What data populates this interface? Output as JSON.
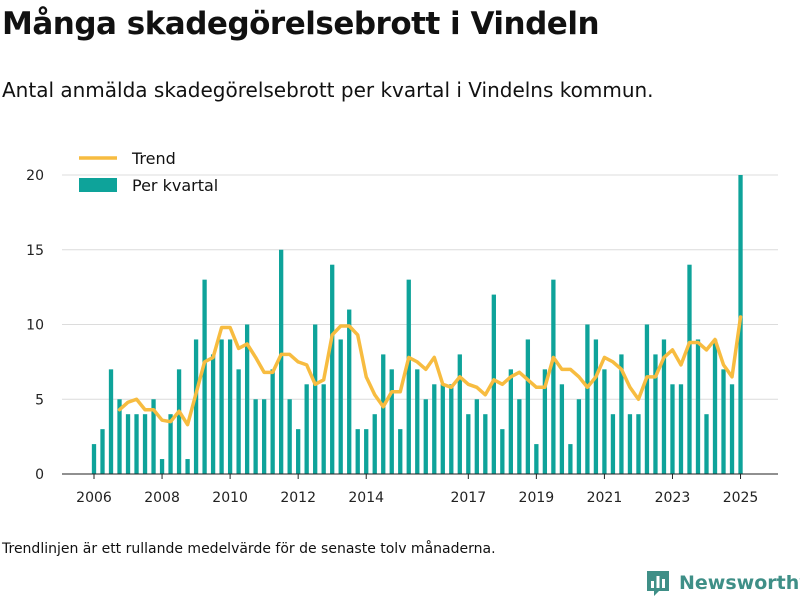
{
  "header": {
    "title": "Många skadegörelsebrott i Vindeln",
    "subtitle": "Antal anmälda skadegörelsebrott per kvartal i Vindelns kommun."
  },
  "footer": {
    "note": "Trendlinjen är ett rullande medelvärde för de senaste tolv månaderna.",
    "brand": "Newsworthy",
    "brand_icon": "bar-chart-logo-icon",
    "brand_color": "#3f8f87"
  },
  "chart_data": {
    "type": "bar",
    "title": "Många skadegörelsebrott i Vindeln",
    "subtitle": "Antal anmälda skadegörelsebrott per kvartal i Vindelns kommun.",
    "xlabel": "",
    "ylabel": "",
    "ylim": [
      0,
      20
    ],
    "yticks": [
      0,
      5,
      10,
      15,
      20
    ],
    "x_ticks": [
      {
        "label": "2006",
        "year": 2006
      },
      {
        "label": "2008",
        "year": 2008
      },
      {
        "label": "2010",
        "year": 2010
      },
      {
        "label": "2012",
        "year": 2012
      },
      {
        "label": "2014",
        "year": 2014
      },
      {
        "label": "2017",
        "year": 2017
      },
      {
        "label": "2019",
        "year": 2019
      },
      {
        "label": "2021",
        "year": 2021
      },
      {
        "label": "2023",
        "year": 2023
      },
      {
        "label": "2025",
        "year": 2025
      }
    ],
    "legend_position": "top-left",
    "grid": "horizontal",
    "categories": [
      "2006Q1",
      "2006Q2",
      "2006Q3",
      "2006Q4",
      "2007Q1",
      "2007Q2",
      "2007Q3",
      "2007Q4",
      "2008Q1",
      "2008Q2",
      "2008Q3",
      "2008Q4",
      "2009Q1",
      "2009Q2",
      "2009Q3",
      "2009Q4",
      "2010Q1",
      "2010Q2",
      "2010Q3",
      "2010Q4",
      "2011Q1",
      "2011Q2",
      "2011Q3",
      "2011Q4",
      "2012Q1",
      "2012Q2",
      "2012Q3",
      "2012Q4",
      "2013Q1",
      "2013Q2",
      "2013Q3",
      "2013Q4",
      "2014Q1",
      "2014Q2",
      "2014Q3",
      "2014Q4",
      "2015Q1",
      "2015Q2",
      "2015Q3",
      "2015Q4",
      "2016Q1",
      "2016Q2",
      "2016Q3",
      "2016Q4",
      "2017Q1",
      "2017Q2",
      "2017Q3",
      "2017Q4",
      "2018Q1",
      "2018Q2",
      "2018Q3",
      "2018Q4",
      "2019Q1",
      "2019Q2",
      "2019Q3",
      "2019Q4",
      "2020Q1",
      "2020Q2",
      "2020Q3",
      "2020Q4",
      "2021Q1",
      "2021Q2",
      "2021Q3",
      "2021Q4",
      "2022Q1",
      "2022Q2",
      "2022Q3",
      "2022Q4",
      "2023Q1",
      "2023Q2",
      "2023Q3",
      "2023Q4",
      "2024Q1",
      "2024Q2",
      "2024Q3",
      "2024Q4",
      "2025Q1"
    ],
    "series": [
      {
        "name": "Per kvartal",
        "type": "bar",
        "color": "#0ea39a",
        "values": [
          2,
          3,
          7,
          5,
          4,
          4,
          4,
          5,
          1,
          4,
          7,
          1,
          9,
          13,
          8,
          9,
          9,
          7,
          10,
          5,
          5,
          7,
          15,
          5,
          3,
          6,
          10,
          6,
          14,
          9,
          11,
          3,
          3,
          4,
          8,
          7,
          3,
          13,
          7,
          5,
          6,
          6,
          6,
          8,
          4,
          5,
          4,
          12,
          3,
          7,
          5,
          9,
          2,
          7,
          13,
          6,
          2,
          5,
          10,
          9,
          7,
          4,
          8,
          4,
          4,
          10,
          8,
          9,
          6,
          6,
          14,
          9,
          4,
          9,
          7,
          6,
          20
        ]
      },
      {
        "name": "Trend",
        "type": "line",
        "color": "#f7bc40",
        "values": [
          null,
          null,
          null,
          4.3,
          4.8,
          5.0,
          4.3,
          4.3,
          3.6,
          3.5,
          4.2,
          3.3,
          5.4,
          7.5,
          7.8,
          9.8,
          9.8,
          8.4,
          8.7,
          7.8,
          6.8,
          6.8,
          8.0,
          8.0,
          7.5,
          7.3,
          6.0,
          6.3,
          9.3,
          9.9,
          9.9,
          9.3,
          6.5,
          5.3,
          4.5,
          5.5,
          5.5,
          7.8,
          7.5,
          7.0,
          7.8,
          6.0,
          5.8,
          6.5,
          6.0,
          5.8,
          5.3,
          6.3,
          6.0,
          6.5,
          6.8,
          6.3,
          5.8,
          5.8,
          7.8,
          7.0,
          7.0,
          6.5,
          5.8,
          6.5,
          7.8,
          7.5,
          7.0,
          5.8,
          5.0,
          6.5,
          6.5,
          7.8,
          8.3,
          7.3,
          8.8,
          8.8,
          8.3,
          9.0,
          7.3,
          6.5,
          10.5
        ]
      }
    ]
  }
}
